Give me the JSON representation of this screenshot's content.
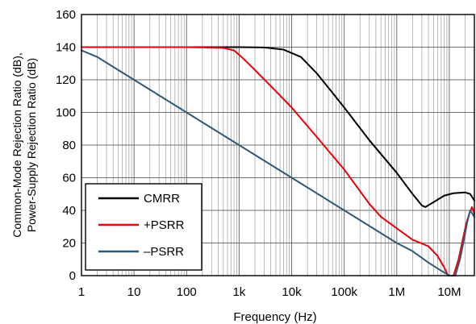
{
  "chart_data": {
    "type": "line",
    "xlabel": "Frequency (Hz)",
    "ylabel_line1": "Common-Mode Rejection Ratio (dB),",
    "ylabel_line2": "Power-Supply Rejection Ratio (dB)",
    "x_scale": "log",
    "xlim": [
      1,
      30000000
    ],
    "ylim": [
      0,
      160
    ],
    "grid": true,
    "legend_position": "bottom-left",
    "x_ticks": [
      {
        "value": 1,
        "label": "1"
      },
      {
        "value": 10,
        "label": "10"
      },
      {
        "value": 100,
        "label": "100"
      },
      {
        "value": 1000,
        "label": "1k"
      },
      {
        "value": 10000,
        "label": "10k"
      },
      {
        "value": 100000,
        "label": "100k"
      },
      {
        "value": 1000000,
        "label": "1M"
      },
      {
        "value": 10000000,
        "label": "10M"
      }
    ],
    "y_ticks": [
      0,
      20,
      40,
      60,
      80,
      100,
      120,
      140,
      160
    ],
    "series": [
      {
        "name": "CMRR",
        "color": "#000000",
        "points": [
          [
            1,
            140
          ],
          [
            100,
            140
          ],
          [
            1000,
            140
          ],
          [
            3000,
            139.8
          ],
          [
            7000,
            138.5
          ],
          [
            15000,
            134
          ],
          [
            30000,
            124
          ],
          [
            60000,
            112
          ],
          [
            100000,
            103
          ],
          [
            300000,
            83
          ],
          [
            1000000,
            63
          ],
          [
            2000000,
            50
          ],
          [
            3000000,
            43
          ],
          [
            3500000,
            42
          ],
          [
            5000000,
            45
          ],
          [
            8000000,
            49
          ],
          [
            12000000,
            50.5
          ],
          [
            20000000,
            51
          ],
          [
            25000000,
            50
          ],
          [
            30000000,
            46
          ]
        ]
      },
      {
        "name": "+PSRR",
        "color": "#e8000b",
        "points": [
          [
            1,
            140
          ],
          [
            100,
            140
          ],
          [
            500,
            139.5
          ],
          [
            800,
            138
          ],
          [
            1200,
            133
          ],
          [
            2000,
            126
          ],
          [
            5000,
            113
          ],
          [
            10000,
            103
          ],
          [
            30000,
            85
          ],
          [
            100000,
            65
          ],
          [
            300000,
            44
          ],
          [
            500000,
            36
          ],
          [
            1000000,
            29
          ],
          [
            2000000,
            22
          ],
          [
            4000000,
            18
          ],
          [
            6000000,
            12
          ],
          [
            8000000,
            5
          ],
          [
            9500000,
            0
          ],
          [
            12000000,
            0
          ],
          [
            15000000,
            10
          ],
          [
            18000000,
            22
          ],
          [
            21000000,
            32
          ],
          [
            24000000,
            38
          ],
          [
            27000000,
            42
          ],
          [
            30000000,
            38
          ]
        ]
      },
      {
        "name": "–PSRR",
        "color": "#2d5a78",
        "points": [
          [
            1,
            138
          ],
          [
            2,
            134
          ],
          [
            5,
            126
          ],
          [
            10,
            120
          ],
          [
            100,
            100
          ],
          [
            1000,
            80
          ],
          [
            10000,
            60
          ],
          [
            100000,
            40
          ],
          [
            1000000,
            20
          ],
          [
            2000000,
            15
          ],
          [
            4000000,
            8
          ],
          [
            7000000,
            3
          ],
          [
            9000000,
            1
          ],
          [
            10000000,
            0
          ],
          [
            13000000,
            0
          ],
          [
            16000000,
            10
          ],
          [
            19000000,
            22
          ],
          [
            22000000,
            33
          ],
          [
            25000000,
            40
          ],
          [
            30000000,
            36
          ]
        ]
      }
    ]
  }
}
